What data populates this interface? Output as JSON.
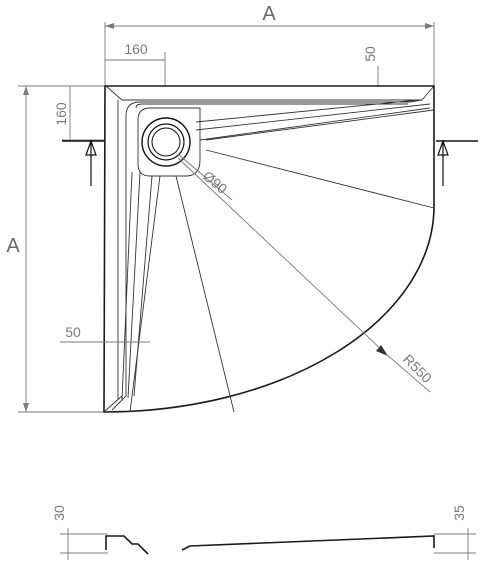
{
  "dimensions": {
    "width_label": "A",
    "height_label": "A",
    "drain_offset_x": "160",
    "drain_offset_y": "160",
    "top_rim": "50",
    "side_rim": "50",
    "drain_diameter": "Ø90",
    "radius": "R550",
    "profile_left_height": "30",
    "profile_right_height": "35"
  }
}
